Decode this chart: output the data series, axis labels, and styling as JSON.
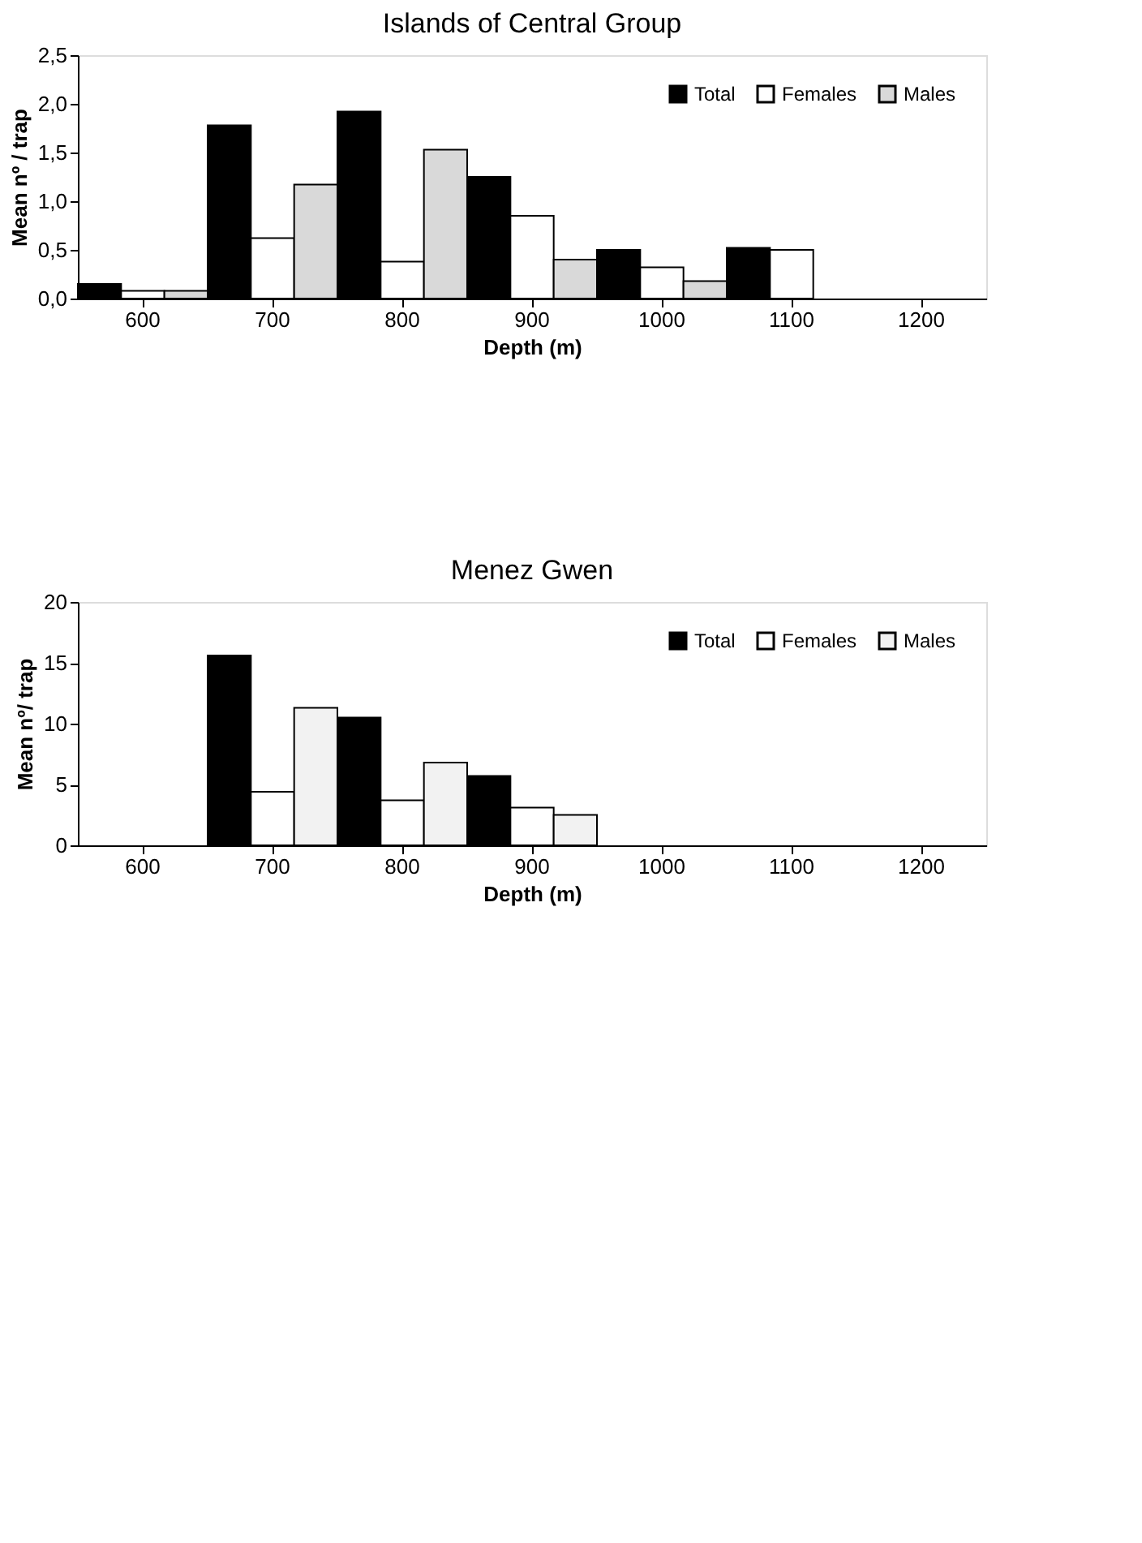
{
  "chart_data": [
    {
      "type": "bar",
      "title": "Islands of Central Group",
      "xlabel": "Depth (m)",
      "ylabel": "Mean nº / trap",
      "categories": [
        "600",
        "700",
        "800",
        "900",
        "1000",
        "1100",
        "1200"
      ],
      "series": [
        {
          "name": "Total",
          "color": "#000000",
          "values": [
            0.15,
            1.78,
            1.92,
            1.25,
            0.5,
            0.52,
            null
          ]
        },
        {
          "name": "Females",
          "color": "#ffffff",
          "values": [
            0.08,
            0.62,
            0.38,
            0.85,
            0.32,
            0.5,
            null
          ]
        },
        {
          "name": "Males",
          "color": "#d9d9d9",
          "values": [
            0.08,
            1.17,
            1.53,
            0.4,
            0.18,
            null,
            null
          ]
        }
      ],
      "ylim": [
        0,
        2.5
      ],
      "yticks": [
        {
          "value": 0,
          "label": "0,0"
        },
        {
          "value": 0.5,
          "label": "0,5"
        },
        {
          "value": 1,
          "label": "1,0"
        },
        {
          "value": 1.5,
          "label": "1,5"
        },
        {
          "value": 2,
          "label": "2,0"
        },
        {
          "value": 2.5,
          "label": "2,5"
        }
      ],
      "grid": false,
      "legend": "top right"
    },
    {
      "type": "bar",
      "title": "Menez Gwen",
      "xlabel": "Depth (m)",
      "ylabel": "Mean nº/ trap",
      "categories": [
        "600",
        "700",
        "800",
        "900",
        "1000",
        "1100",
        "1200"
      ],
      "series": [
        {
          "name": "Total",
          "color": "#000000",
          "values": [
            null,
            15.6,
            10.5,
            5.7,
            null,
            null,
            null
          ]
        },
        {
          "name": "Females",
          "color": "#ffffff",
          "values": [
            null,
            4.4,
            3.7,
            3.1,
            null,
            null,
            null
          ]
        },
        {
          "name": "Males",
          "color": "#f2f2f2",
          "values": [
            null,
            11.3,
            6.8,
            2.5,
            null,
            null,
            null
          ]
        }
      ],
      "ylim": [
        0,
        20
      ],
      "yticks": [
        0,
        5,
        10,
        15,
        20
      ],
      "grid": false,
      "legend": "top right"
    }
  ]
}
